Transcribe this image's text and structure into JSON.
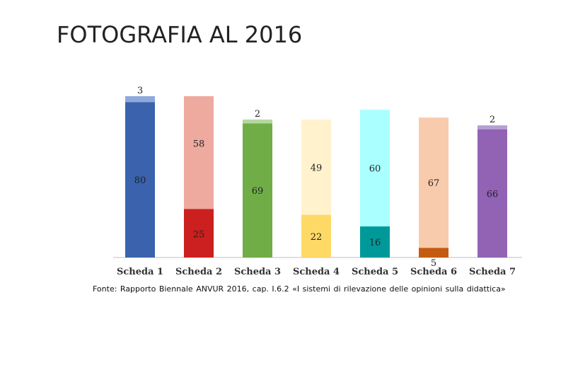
{
  "slide": {
    "title": "FOTOGRAFIA AL 2016",
    "source": "Fonte:  Rapporto Biennale ANVUR 2016, cap. I.6.2 «I sistemi di rilevazione delle opinioni sulla didattica»"
  },
  "chart_data": {
    "type": "bar",
    "stacked": true,
    "categories": [
      "Scheda 1",
      "Scheda 2",
      "Scheda 3",
      "Scheda 4",
      "Scheda 5",
      "Scheda 6",
      "Scheda 7"
    ],
    "series": [
      {
        "values": [
          0,
          25,
          0,
          22,
          16,
          5,
          0
        ],
        "colors": [
          "#3a62ad",
          "#cc1f1f",
          "#70ad47",
          "#ffd966",
          "#00999a",
          "#c55a11",
          "#9262b5"
        ]
      },
      {
        "values": [
          80,
          58,
          69,
          49,
          60,
          67,
          66
        ],
        "colors": [
          "#3a62ad",
          "#eeaa9f",
          "#70ad47",
          "#fff2cc",
          "#aaffff",
          "#f8cbad",
          "#9262b5"
        ]
      },
      {
        "values": [
          3,
          0,
          2,
          0,
          0,
          0,
          2
        ],
        "colors": [
          "#8ea9db",
          "#eeaa9f",
          "#b4d8a0",
          "#fff2cc",
          "#aaffff",
          "#f8cbad",
          "#b4a0d3"
        ]
      }
    ],
    "data_labels": [
      [
        "",
        "25",
        "",
        "22",
        "16",
        "5",
        ""
      ],
      [
        "80",
        "58",
        "69",
        "49",
        "60",
        "67",
        "66"
      ],
      [
        "3",
        "",
        "2",
        "",
        "",
        "",
        "2"
      ]
    ],
    "ylim": [
      0,
      83
    ],
    "grid": false,
    "legend": "none"
  }
}
